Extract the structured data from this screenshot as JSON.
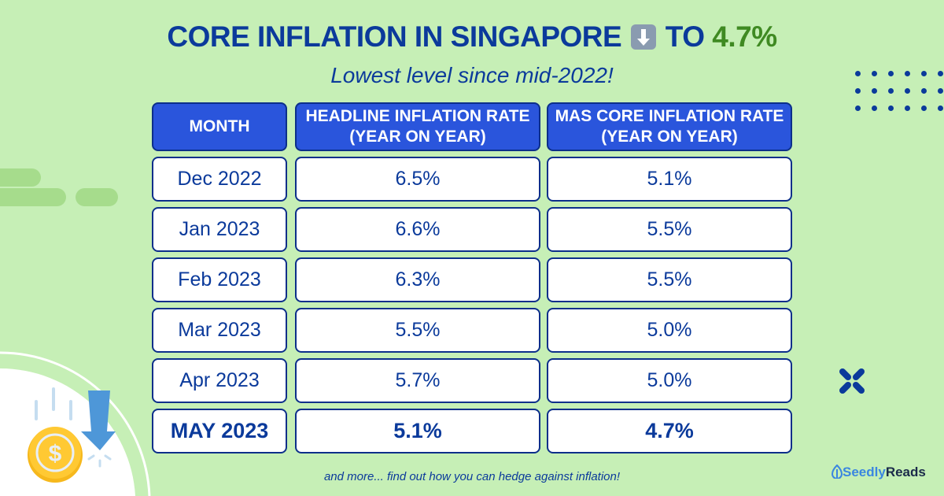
{
  "title": {
    "prefix": "CORE INFLATION IN SINGAPORE",
    "icon": "down-arrow-emoji",
    "middle": "TO",
    "highlight": "4.7%"
  },
  "subtitle": "Lowest level since mid-2022!",
  "table": {
    "headers": [
      "MONTH",
      "HEADLINE INFLATION RATE (YEAR ON YEAR)",
      "MAS CORE INFLATION RATE (YEAR ON YEAR)"
    ],
    "rows": [
      [
        "Dec 2022",
        "6.5%",
        "5.1%"
      ],
      [
        "Jan 2023",
        "6.6%",
        "5.5%"
      ],
      [
        "Feb 2023",
        "6.3%",
        "5.5%"
      ],
      [
        "Mar 2023",
        "5.5%",
        "5.0%"
      ],
      [
        "Apr 2023",
        "5.7%",
        "5.0%"
      ],
      [
        "MAY 2023",
        "5.1%",
        "4.7%"
      ]
    ]
  },
  "footer": "and more... find out how you can hedge against inflation!",
  "logo": {
    "part1": "Seedly",
    "part2": "Reads"
  },
  "colors": {
    "background": "#c6efb6",
    "primary": "#0b3a9b",
    "header_fill": "#2a55dc",
    "highlight": "#3f8a22"
  }
}
